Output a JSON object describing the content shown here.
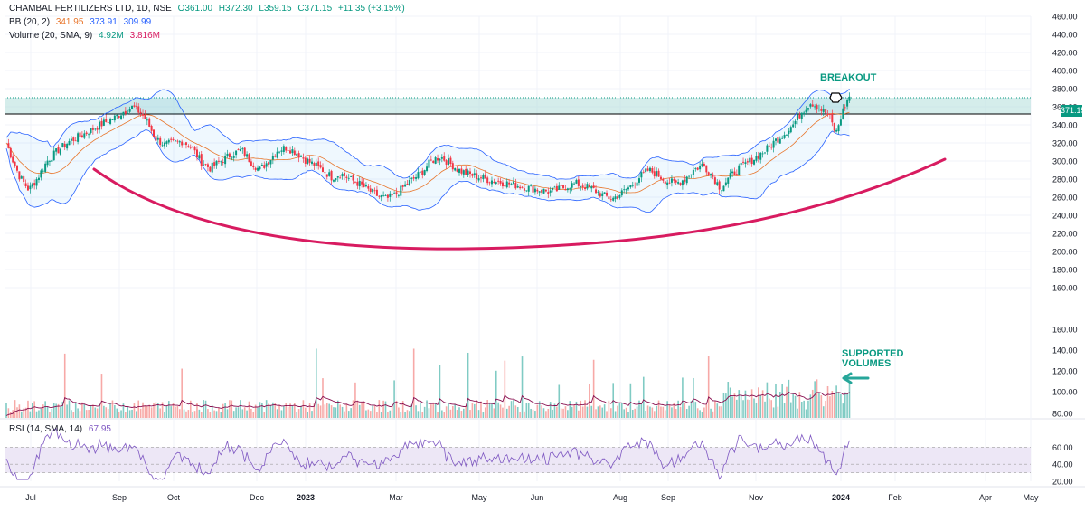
{
  "header": {
    "symbol": "CHAMBAL FERTILIZERS LTD, 1D, NSE",
    "open": "O361.00",
    "high": "H372.30",
    "low": "L359.15",
    "close": "C371.15",
    "change": "+11.35 (+3.15%)"
  },
  "bb_legend": {
    "label": "BB (20, 2)",
    "basis": "341.95",
    "upper": "373.91",
    "lower": "309.99"
  },
  "volume_legend": {
    "label": "Volume (20, SMA, 9)",
    "volume": "4.92M",
    "ma": "3.816M"
  },
  "rsi_legend": {
    "label": "RSI (14, SMA, 14)",
    "value": "67.95"
  },
  "annotations": {
    "breakout": "BREAKOUT",
    "volumes_line1": "SUPPORTED",
    "volumes_line2": "VOLUMES"
  },
  "last_price_label": "371.15",
  "colors": {
    "up": "#089981",
    "down": "#f23645",
    "band": "#2962ff",
    "basis": "#e8762c",
    "curve": "#d81b60",
    "zone": "#b2dfdb",
    "rsi": "#7e57c2",
    "rsi_band": "#ede7f6"
  },
  "chart_data": {
    "type": "candlestick",
    "price_axis": {
      "ylim": [
        160,
        460
      ],
      "ticks": [
        "160.00",
        "180.00",
        "200.00",
        "220.00",
        "240.00",
        "260.00",
        "280.00",
        "300.00",
        "320.00",
        "340.00",
        "360.00",
        "380.00",
        "400.00",
        "420.00",
        "440.00",
        "460.00"
      ]
    },
    "volume_axis": {
      "ticks": [
        "80.00",
        "100.00",
        "120.00",
        "140.00",
        "160.00"
      ]
    },
    "rsi_axis": {
      "ticks": [
        "20.00",
        "40.00",
        "60.00"
      ],
      "upper_band": 60,
      "lower_band": 30
    },
    "time_axis": [
      "Jul",
      "Sep",
      "Oct",
      "Dec",
      "2023",
      "Mar",
      "May",
      "Jun",
      "Aug",
      "Sep",
      "Nov",
      "2024",
      "Feb",
      "Apr",
      "May"
    ],
    "resistance_zone": [
      352,
      370
    ],
    "last_price": 371.15,
    "price_path": [
      [
        0,
        320
      ],
      [
        0.3,
        300
      ],
      [
        0.6,
        282
      ],
      [
        1.0,
        268
      ],
      [
        1.4,
        282
      ],
      [
        1.8,
        300
      ],
      [
        2.3,
        312
      ],
      [
        2.8,
        322
      ],
      [
        3.3,
        328
      ],
      [
        3.8,
        335
      ],
      [
        4.3,
        342
      ],
      [
        4.8,
        348
      ],
      [
        5.2,
        355
      ],
      [
        5.6,
        360
      ],
      [
        6.0,
        352
      ],
      [
        6.3,
        340
      ],
      [
        6.6,
        325
      ],
      [
        7.0,
        318
      ],
      [
        7.4,
        320
      ],
      [
        7.8,
        322
      ],
      [
        8.2,
        315
      ],
      [
        8.6,
        300
      ],
      [
        9.0,
        292
      ],
      [
        9.5,
        300
      ],
      [
        10.0,
        308
      ],
      [
        10.4,
        312
      ],
      [
        10.8,
        300
      ],
      [
        11.2,
        290
      ],
      [
        11.6,
        300
      ],
      [
        12.0,
        312
      ],
      [
        12.4,
        315
      ],
      [
        12.8,
        310
      ],
      [
        13.2,
        302
      ],
      [
        13.6,
        296
      ],
      [
        14.0,
        290
      ],
      [
        14.4,
        282
      ],
      [
        14.8,
        286
      ],
      [
        15.2,
        280
      ],
      [
        15.6,
        275
      ],
      [
        16.0,
        268
      ],
      [
        16.4,
        262
      ],
      [
        16.8,
        258
      ],
      [
        17.2,
        262
      ],
      [
        17.6,
        272
      ],
      [
        18.0,
        280
      ],
      [
        18.4,
        288
      ],
      [
        18.8,
        300
      ],
      [
        19.2,
        305
      ],
      [
        19.6,
        298
      ],
      [
        20.0,
        290
      ],
      [
        20.4,
        286
      ],
      [
        20.8,
        283
      ],
      [
        21.2,
        280
      ],
      [
        21.6,
        278
      ],
      [
        22.0,
        276
      ],
      [
        22.4,
        274
      ],
      [
        22.8,
        272
      ],
      [
        23.2,
        270
      ],
      [
        23.6,
        268
      ],
      [
        24.0,
        266
      ],
      [
        24.4,
        268
      ],
      [
        24.8,
        272
      ],
      [
        25.2,
        275
      ],
      [
        25.6,
        272
      ],
      [
        26.0,
        268
      ],
      [
        26.4,
        262
      ],
      [
        26.8,
        258
      ],
      [
        27.2,
        264
      ],
      [
        27.6,
        272
      ],
      [
        28.0,
        282
      ],
      [
        28.4,
        290
      ],
      [
        28.8,
        285
      ],
      [
        29.2,
        278
      ],
      [
        29.6,
        275
      ],
      [
        30.0,
        280
      ],
      [
        30.4,
        290
      ],
      [
        30.8,
        296
      ],
      [
        31.2,
        285
      ],
      [
        31.6,
        270
      ],
      [
        32.0,
        282
      ],
      [
        32.4,
        292
      ],
      [
        32.8,
        298
      ],
      [
        33.2,
        305
      ],
      [
        33.6,
        312
      ],
      [
        34.0,
        322
      ],
      [
        34.4,
        330
      ],
      [
        34.8,
        340
      ],
      [
        35.2,
        355
      ],
      [
        35.6,
        365
      ],
      [
        36.0,
        358
      ],
      [
        36.4,
        350
      ],
      [
        36.7,
        330
      ],
      [
        37.0,
        355
      ],
      [
        37.3,
        372
      ]
    ],
    "annotations": [
      "BREAKOUT",
      "SUPPORTED VOLUMES"
    ]
  }
}
